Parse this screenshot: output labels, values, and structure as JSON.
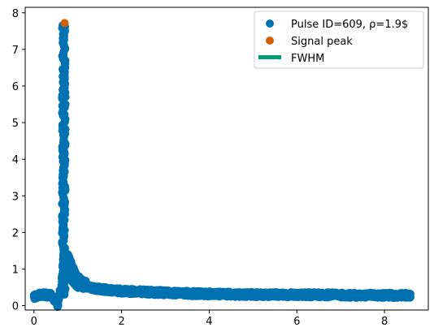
{
  "chart_data": {
    "type": "scatter",
    "title": "",
    "xlabel": "",
    "ylabel": "",
    "xlim": [
      -0.2,
      9.0
    ],
    "ylim": [
      -0.12,
      8.15
    ],
    "xticks": [
      0,
      2,
      4,
      6,
      8
    ],
    "yticks": [
      0,
      1,
      2,
      3,
      4,
      5,
      6,
      7,
      8
    ],
    "grid": false,
    "legend_position": "upper-right",
    "colors": {
      "pulse": "#0072b2",
      "peak": "#d55e00",
      "fwhm": "#009e73"
    },
    "series": [
      {
        "name": "Pulse ID=609, ρ=1.9$",
        "kind": "scatter",
        "description_points": [
          {
            "x": 0.0,
            "y": 0.25
          },
          {
            "x": 0.2,
            "y": 0.3
          },
          {
            "x": 0.4,
            "y": 0.28
          },
          {
            "x": 0.55,
            "y": 0.0
          },
          {
            "x": 0.62,
            "y": 0.7
          },
          {
            "x": 0.66,
            "y": 3.0
          },
          {
            "x": 0.68,
            "y": 6.0
          },
          {
            "x": 0.7,
            "y": 7.7
          },
          {
            "x": 0.74,
            "y": 5.0
          },
          {
            "x": 0.77,
            "y": 2.0
          },
          {
            "x": 0.8,
            "y": 0.8
          },
          {
            "x": 1.0,
            "y": 0.55
          },
          {
            "x": 1.5,
            "y": 0.45
          },
          {
            "x": 2.0,
            "y": 0.4
          },
          {
            "x": 3.0,
            "y": 0.35
          },
          {
            "x": 4.0,
            "y": 0.32
          },
          {
            "x": 5.0,
            "y": 0.3
          },
          {
            "x": 6.0,
            "y": 0.3
          },
          {
            "x": 7.0,
            "y": 0.29
          },
          {
            "x": 8.0,
            "y": 0.28
          },
          {
            "x": 8.6,
            "y": 0.28
          }
        ]
      },
      {
        "name": "Signal peak",
        "kind": "scatter",
        "points": [
          {
            "x": 0.7,
            "y": 7.72
          }
        ]
      },
      {
        "name": "FWHM",
        "kind": "line",
        "points": []
      }
    ]
  },
  "legend": {
    "items": [
      {
        "label": "Pulse ID=609, ρ=1.9$"
      },
      {
        "label": "Signal peak"
      },
      {
        "label": "FWHM"
      }
    ]
  }
}
